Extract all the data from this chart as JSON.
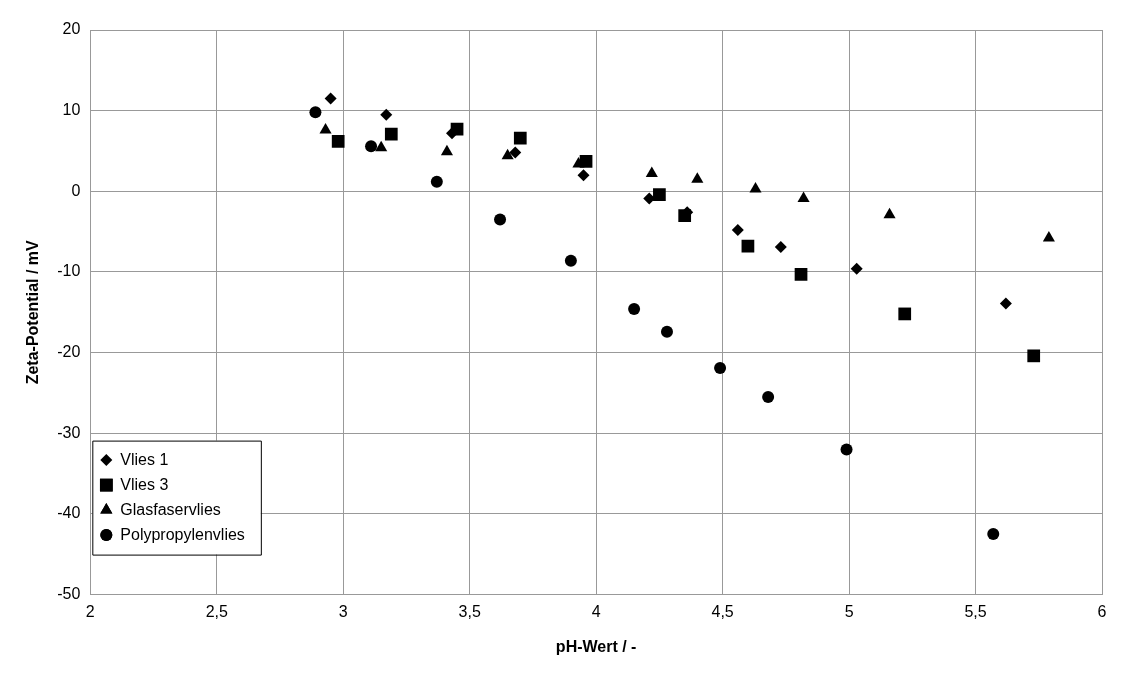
{
  "chart_data": {
    "type": "scatter",
    "xlabel": "pH-Wert / -",
    "ylabel": "Zeta-Potential / mV",
    "xlim": [
      2,
      6
    ],
    "xticks": [
      2,
      {
        "value": 2.5,
        "label": "2,5"
      },
      3,
      {
        "value": 3.5,
        "label": "3,5"
      },
      4,
      {
        "value": 4.5,
        "label": "4,5"
      },
      5,
      {
        "value": 5.5,
        "label": "5,5"
      },
      6
    ],
    "ylim": [
      -50,
      20
    ],
    "yticks": [
      -50,
      -40,
      -30,
      -20,
      -10,
      0,
      10,
      20
    ],
    "grid": true,
    "legend": "bottom left",
    "series": [
      {
        "name": "Vlies 1",
        "color": "#000000",
        "marker": "diamond",
        "x": [
          2.95,
          3.17,
          3.43,
          3.68,
          3.95,
          4.21,
          4.36,
          4.56,
          4.73,
          5.03,
          5.62
        ],
        "values": [
          11.5,
          9.5,
          7.2,
          4.8,
          2.0,
          -0.9,
          -2.6,
          -4.8,
          -6.9,
          -9.6,
          -13.9
        ]
      },
      {
        "name": "Vlies 3",
        "color": "#000000",
        "marker": "square",
        "x": [
          2.98,
          3.19,
          3.45,
          3.7,
          3.96,
          4.25,
          4.35,
          4.6,
          4.81,
          5.22,
          5.73
        ],
        "values": [
          6.2,
          7.1,
          7.7,
          6.6,
          3.7,
          -0.4,
          -3.0,
          -6.8,
          -10.3,
          -15.2,
          -20.4
        ]
      },
      {
        "name": "Glasfaservlies",
        "color": "#000000",
        "marker": "triangle",
        "x": [
          2.93,
          3.15,
          3.41,
          3.65,
          3.93,
          4.22,
          4.4,
          4.63,
          4.82,
          5.16,
          5.79
        ],
        "values": [
          7.6,
          5.4,
          4.9,
          4.4,
          3.4,
          2.2,
          1.5,
          0.3,
          -0.9,
          -2.9,
          -5.8
        ]
      },
      {
        "name": "Polypropylenvlies",
        "color": "#000000",
        "marker": "circle",
        "x": [
          2.89,
          3.11,
          3.37,
          3.62,
          3.9,
          4.15,
          4.28,
          4.49,
          4.68,
          4.99,
          5.57
        ],
        "values": [
          9.8,
          5.6,
          1.2,
          -3.5,
          -8.6,
          -14.6,
          -17.4,
          -21.9,
          -25.5,
          -32.0,
          -42.5
        ]
      }
    ]
  }
}
